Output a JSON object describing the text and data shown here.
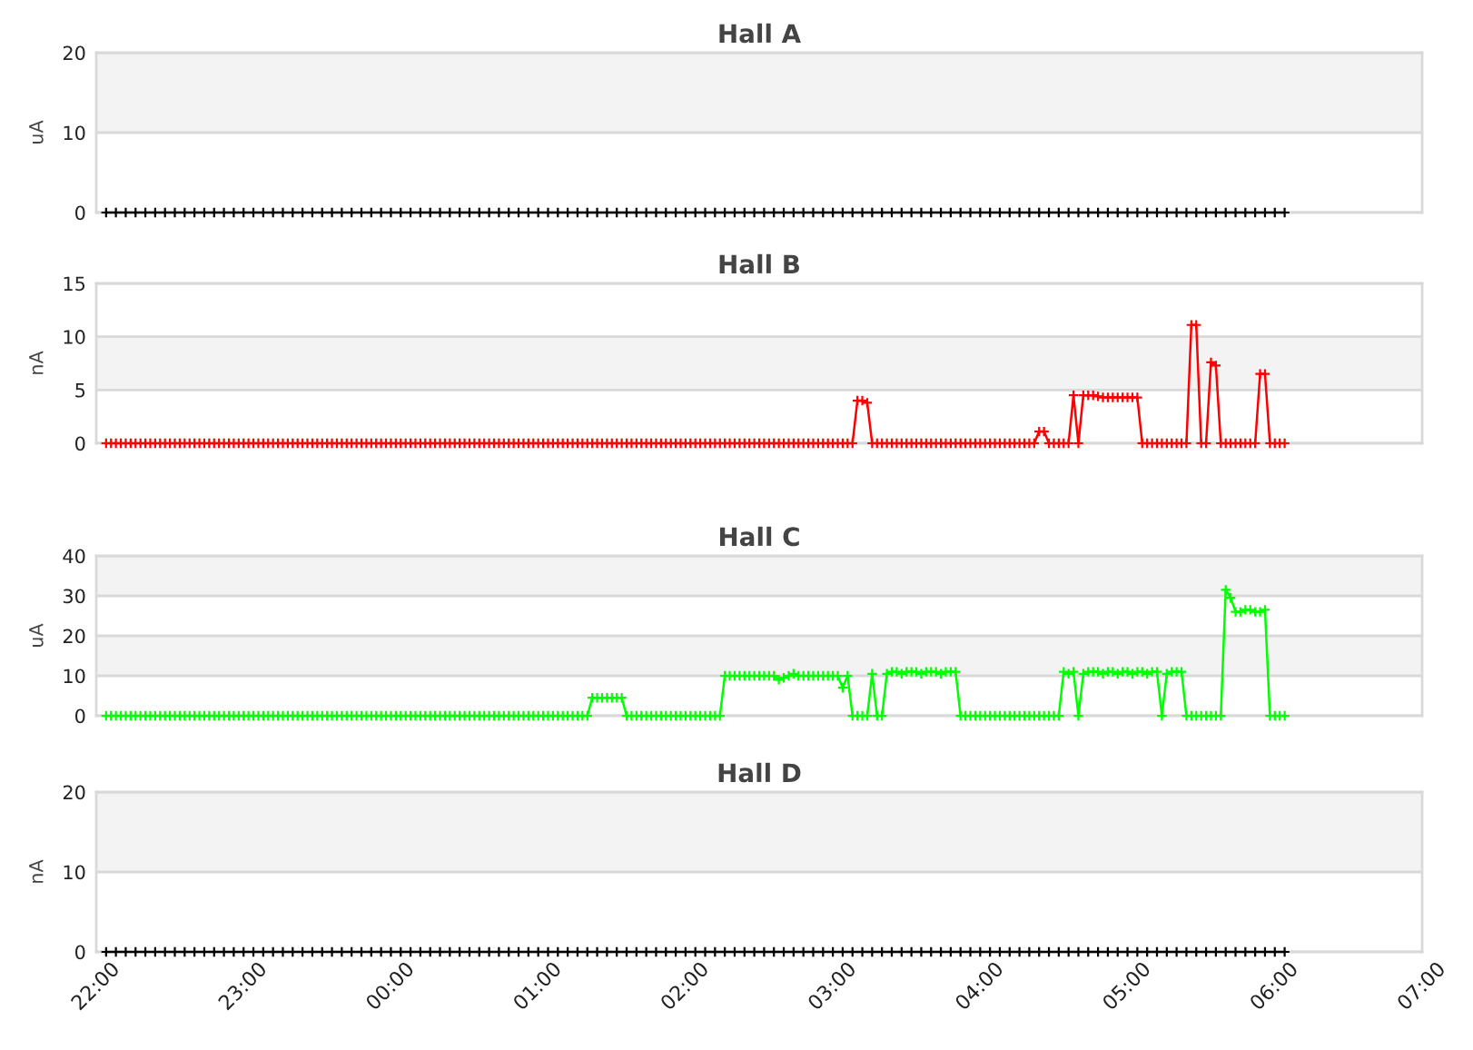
{
  "chart_data": [
    {
      "type": "line",
      "title": "Hall A",
      "ylabel": "uA",
      "xlim": [
        "2000-01-01T22:00",
        "2000-01-02T07:00"
      ],
      "ylim": [
        0,
        20
      ],
      "yticks": [
        0,
        10,
        20
      ],
      "grid": "y",
      "marker": "cross",
      "tick_labels": "y",
      "bands": [
        {
          "axis": "y",
          "from": 10,
          "to": 20,
          "color": "#f3f3f3"
        }
      ],
      "x": [
        "2000-01-01T22:04",
        "2000-01-01T22:08",
        "2000-01-01T22:12",
        "2000-01-01T22:16",
        "2000-01-01T22:20",
        "2000-01-01T22:24",
        "2000-01-01T22:28",
        "2000-01-01T22:32",
        "2000-01-01T22:36",
        "2000-01-01T22:40",
        "2000-01-01T22:44",
        "2000-01-01T22:48",
        "2000-01-01T22:52",
        "2000-01-01T22:56",
        "2000-01-01T23:00",
        "2000-01-01T23:04",
        "2000-01-01T23:08",
        "2000-01-01T23:12",
        "2000-01-01T23:16",
        "2000-01-01T23:20",
        "2000-01-01T23:24",
        "2000-01-01T23:28",
        "2000-01-01T23:32",
        "2000-01-01T23:36",
        "2000-01-01T23:40",
        "2000-01-01T23:44",
        "2000-01-01T23:48",
        "2000-01-01T23:52",
        "2000-01-01T23:56",
        "2000-01-02T00:00",
        "2000-01-02T00:04",
        "2000-01-02T00:08",
        "2000-01-02T00:12",
        "2000-01-02T00:16",
        "2000-01-02T00:20",
        "2000-01-02T00:24",
        "2000-01-02T00:28",
        "2000-01-02T00:32",
        "2000-01-02T00:36",
        "2000-01-02T00:40",
        "2000-01-02T00:44",
        "2000-01-02T00:48",
        "2000-01-02T00:52",
        "2000-01-02T00:56",
        "2000-01-02T01:00",
        "2000-01-02T01:04",
        "2000-01-02T01:08",
        "2000-01-02T01:12",
        "2000-01-02T01:16",
        "2000-01-02T01:20",
        "2000-01-02T01:24",
        "2000-01-02T01:28",
        "2000-01-02T01:32",
        "2000-01-02T01:36",
        "2000-01-02T01:40",
        "2000-01-02T01:44",
        "2000-01-02T01:48",
        "2000-01-02T01:52",
        "2000-01-02T01:56",
        "2000-01-02T02:00",
        "2000-01-02T02:04",
        "2000-01-02T02:08",
        "2000-01-02T02:12",
        "2000-01-02T02:16",
        "2000-01-02T02:20",
        "2000-01-02T02:24",
        "2000-01-02T02:28",
        "2000-01-02T02:32",
        "2000-01-02T02:36",
        "2000-01-02T02:40",
        "2000-01-02T02:44",
        "2000-01-02T02:48",
        "2000-01-02T02:52",
        "2000-01-02T02:56",
        "2000-01-02T03:00",
        "2000-01-02T03:04",
        "2000-01-02T03:08",
        "2000-01-02T03:12",
        "2000-01-02T03:16",
        "2000-01-02T03:20",
        "2000-01-02T03:24",
        "2000-01-02T03:28",
        "2000-01-02T03:32",
        "2000-01-02T03:36",
        "2000-01-02T03:40",
        "2000-01-02T03:44",
        "2000-01-02T03:48",
        "2000-01-02T03:52",
        "2000-01-02T03:56",
        "2000-01-02T04:00",
        "2000-01-02T04:04",
        "2000-01-02T04:08",
        "2000-01-02T04:12",
        "2000-01-02T04:16",
        "2000-01-02T04:20",
        "2000-01-02T04:24",
        "2000-01-02T04:28",
        "2000-01-02T04:32",
        "2000-01-02T04:36",
        "2000-01-02T04:40",
        "2000-01-02T04:44",
        "2000-01-02T04:48",
        "2000-01-02T04:52",
        "2000-01-02T04:56",
        "2000-01-02T05:00",
        "2000-01-02T05:04",
        "2000-01-02T05:08",
        "2000-01-02T05:12",
        "2000-01-02T05:16",
        "2000-01-02T05:20",
        "2000-01-02T05:24",
        "2000-01-02T05:28",
        "2000-01-02T05:32",
        "2000-01-02T05:36",
        "2000-01-02T05:40",
        "2000-01-02T05:44",
        "2000-01-02T05:48",
        "2000-01-02T05:52",
        "2000-01-02T05:56",
        "2000-01-02T06:00",
        "2000-01-02T06:04"
      ],
      "series": [
        {
          "color": "#000000",
          "values": [
            0,
            0,
            0,
            0,
            0,
            0,
            0,
            0,
            0,
            0,
            0,
            0,
            0,
            0,
            0,
            0,
            0,
            0,
            0,
            0,
            0,
            0,
            0,
            0,
            0,
            0,
            0,
            0,
            0,
            0,
            0,
            0,
            0,
            0,
            0,
            0,
            0,
            0,
            0,
            0,
            0,
            0,
            0,
            0,
            0,
            0,
            0,
            0,
            0,
            0,
            0,
            0,
            0,
            0,
            0,
            0,
            0,
            0,
            0,
            0,
            0,
            0,
            0,
            0,
            0,
            0,
            0,
            0,
            0,
            0,
            0,
            0,
            0,
            0,
            0,
            0,
            0,
            0,
            0,
            0,
            0,
            0,
            0,
            0,
            0,
            0,
            0,
            0,
            0,
            0,
            0,
            0,
            0,
            0,
            0,
            0,
            0,
            0,
            0,
            0,
            0,
            0,
            0,
            0,
            0,
            0,
            0,
            0,
            0,
            0,
            0,
            0,
            0,
            0,
            0,
            0,
            0,
            0,
            0,
            0,
            0
          ]
        }
      ]
    },
    {
      "type": "line",
      "title": "Hall B",
      "ylabel": "nA",
      "xlim": [
        "2000-01-01T22:00",
        "2000-01-02T07:00"
      ],
      "ylim": [
        0,
        15
      ],
      "yticks": [
        0,
        5,
        10,
        15
      ],
      "grid": "y",
      "marker": "cross",
      "tick_labels": "y",
      "bands": [
        {
          "axis": "y",
          "from": 5,
          "to": 10,
          "color": "#f3f3f3"
        }
      ],
      "x": [
        "2000-01-01T22:04",
        "2000-01-01T22:06",
        "2000-01-01T22:08",
        "2000-01-01T22:10",
        "2000-01-01T22:12",
        "2000-01-01T22:14",
        "2000-01-01T22:16",
        "2000-01-01T22:18",
        "2000-01-01T22:20",
        "2000-01-01T22:22",
        "2000-01-01T22:24",
        "2000-01-01T22:26",
        "2000-01-01T22:28",
        "2000-01-01T22:30",
        "2000-01-01T22:32",
        "2000-01-01T22:34",
        "2000-01-01T22:36",
        "2000-01-01T22:38",
        "2000-01-01T22:40",
        "2000-01-01T22:42",
        "2000-01-01T22:44",
        "2000-01-01T22:46",
        "2000-01-01T22:48",
        "2000-01-01T22:50",
        "2000-01-01T22:52",
        "2000-01-01T22:54",
        "2000-01-01T22:56",
        "2000-01-01T22:58",
        "2000-01-01T23:00",
        "2000-01-01T23:02",
        "2000-01-01T23:04",
        "2000-01-01T23:06",
        "2000-01-01T23:08",
        "2000-01-01T23:10",
        "2000-01-01T23:12",
        "2000-01-01T23:14",
        "2000-01-01T23:16",
        "2000-01-01T23:18",
        "2000-01-01T23:20",
        "2000-01-01T23:22",
        "2000-01-01T23:24",
        "2000-01-01T23:26",
        "2000-01-01T23:28",
        "2000-01-01T23:30",
        "2000-01-01T23:32",
        "2000-01-01T23:34",
        "2000-01-01T23:36",
        "2000-01-01T23:38",
        "2000-01-01T23:40",
        "2000-01-01T23:42",
        "2000-01-01T23:44",
        "2000-01-01T23:46",
        "2000-01-01T23:48",
        "2000-01-01T23:50",
        "2000-01-01T23:52",
        "2000-01-01T23:54",
        "2000-01-01T23:56",
        "2000-01-01T23:58",
        "2000-01-02T00:00",
        "2000-01-02T00:02",
        "2000-01-02T00:04",
        "2000-01-02T00:06",
        "2000-01-02T00:08",
        "2000-01-02T00:10",
        "2000-01-02T00:12",
        "2000-01-02T00:14",
        "2000-01-02T00:16",
        "2000-01-02T00:18",
        "2000-01-02T00:20",
        "2000-01-02T00:22",
        "2000-01-02T00:24",
        "2000-01-02T00:26",
        "2000-01-02T00:28",
        "2000-01-02T00:30",
        "2000-01-02T00:32",
        "2000-01-02T00:34",
        "2000-01-02T00:36",
        "2000-01-02T00:38",
        "2000-01-02T00:40",
        "2000-01-02T00:42",
        "2000-01-02T00:44",
        "2000-01-02T00:46",
        "2000-01-02T00:48",
        "2000-01-02T00:50",
        "2000-01-02T00:52",
        "2000-01-02T00:54",
        "2000-01-02T00:56",
        "2000-01-02T00:58",
        "2000-01-02T01:00",
        "2000-01-02T01:02",
        "2000-01-02T01:04",
        "2000-01-02T01:06",
        "2000-01-02T01:08",
        "2000-01-02T01:10",
        "2000-01-02T01:12",
        "2000-01-02T01:14",
        "2000-01-02T01:16",
        "2000-01-02T01:18",
        "2000-01-02T01:20",
        "2000-01-02T01:22",
        "2000-01-02T01:24",
        "2000-01-02T01:26",
        "2000-01-02T01:28",
        "2000-01-02T01:30",
        "2000-01-02T01:32",
        "2000-01-02T01:34",
        "2000-01-02T01:36",
        "2000-01-02T01:38",
        "2000-01-02T01:40",
        "2000-01-02T01:42",
        "2000-01-02T01:44",
        "2000-01-02T01:46",
        "2000-01-02T01:48",
        "2000-01-02T01:50",
        "2000-01-02T01:52",
        "2000-01-02T01:54",
        "2000-01-02T01:56",
        "2000-01-02T01:58",
        "2000-01-02T02:00",
        "2000-01-02T02:02",
        "2000-01-02T02:04",
        "2000-01-02T02:06",
        "2000-01-02T02:08",
        "2000-01-02T02:10",
        "2000-01-02T02:12",
        "2000-01-02T02:14",
        "2000-01-02T02:16",
        "2000-01-02T02:18",
        "2000-01-02T02:20",
        "2000-01-02T02:22",
        "2000-01-02T02:24",
        "2000-01-02T02:26",
        "2000-01-02T02:28",
        "2000-01-02T02:30",
        "2000-01-02T02:32",
        "2000-01-02T02:34",
        "2000-01-02T02:36",
        "2000-01-02T02:38",
        "2000-01-02T02:40",
        "2000-01-02T02:42",
        "2000-01-02T02:44",
        "2000-01-02T02:46",
        "2000-01-02T02:48",
        "2000-01-02T02:50",
        "2000-01-02T02:52",
        "2000-01-02T02:54",
        "2000-01-02T02:56",
        "2000-01-02T02:58",
        "2000-01-02T03:00",
        "2000-01-02T03:02",
        "2000-01-02T03:04",
        "2000-01-02T03:06",
        "2000-01-02T03:08",
        "2000-01-02T03:10",
        "2000-01-02T03:12",
        "2000-01-02T03:14",
        "2000-01-02T03:16",
        "2000-01-02T03:18",
        "2000-01-02T03:20",
        "2000-01-02T03:22",
        "2000-01-02T03:24",
        "2000-01-02T03:26",
        "2000-01-02T03:28",
        "2000-01-02T03:30",
        "2000-01-02T03:32",
        "2000-01-02T03:34",
        "2000-01-02T03:36",
        "2000-01-02T03:38",
        "2000-01-02T03:40",
        "2000-01-02T03:42",
        "2000-01-02T03:44",
        "2000-01-02T03:46",
        "2000-01-02T03:48",
        "2000-01-02T03:50",
        "2000-01-02T03:52",
        "2000-01-02T03:54",
        "2000-01-02T03:56",
        "2000-01-02T03:58",
        "2000-01-02T04:00",
        "2000-01-02T04:02",
        "2000-01-02T04:04",
        "2000-01-02T04:06",
        "2000-01-02T04:08",
        "2000-01-02T04:10",
        "2000-01-02T04:12",
        "2000-01-02T04:14",
        "2000-01-02T04:16",
        "2000-01-02T04:18",
        "2000-01-02T04:20",
        "2000-01-02T04:22",
        "2000-01-02T04:24",
        "2000-01-02T04:26",
        "2000-01-02T04:28",
        "2000-01-02T04:30",
        "2000-01-02T04:32",
        "2000-01-02T04:34",
        "2000-01-02T04:36",
        "2000-01-02T04:38",
        "2000-01-02T04:40",
        "2000-01-02T04:42",
        "2000-01-02T04:44",
        "2000-01-02T04:46",
        "2000-01-02T04:48",
        "2000-01-02T04:50",
        "2000-01-02T04:52",
        "2000-01-02T04:54",
        "2000-01-02T04:56",
        "2000-01-02T04:58",
        "2000-01-02T05:00",
        "2000-01-02T05:02",
        "2000-01-02T05:04",
        "2000-01-02T05:06",
        "2000-01-02T05:08",
        "2000-01-02T05:10",
        "2000-01-02T05:12",
        "2000-01-02T05:14",
        "2000-01-02T05:16",
        "2000-01-02T05:18",
        "2000-01-02T05:20",
        "2000-01-02T05:22",
        "2000-01-02T05:24",
        "2000-01-02T05:26",
        "2000-01-02T05:28",
        "2000-01-02T05:30",
        "2000-01-02T05:32",
        "2000-01-02T05:34",
        "2000-01-02T05:36",
        "2000-01-02T05:38",
        "2000-01-02T05:40",
        "2000-01-02T05:42",
        "2000-01-02T05:44",
        "2000-01-02T05:46",
        "2000-01-02T05:48",
        "2000-01-02T05:50",
        "2000-01-02T05:52",
        "2000-01-02T05:54",
        "2000-01-02T05:56",
        "2000-01-02T05:58",
        "2000-01-02T06:00",
        "2000-01-02T06:02",
        "2000-01-02T06:04"
      ],
      "series": [
        {
          "color": "#ff0000",
          "values": [
            0,
            0,
            0,
            0,
            0,
            0,
            0,
            0,
            0,
            0,
            0,
            0,
            0,
            0,
            0,
            0,
            0,
            0,
            0,
            0,
            0,
            0,
            0,
            0,
            0,
            0,
            0,
            0,
            0,
            0,
            0,
            0,
            0,
            0,
            0,
            0,
            0,
            0,
            0,
            0,
            0,
            0,
            0,
            0,
            0,
            0,
            0,
            0,
            0,
            0,
            0,
            0,
            0,
            0,
            0,
            0,
            0,
            0,
            0,
            0,
            0,
            0,
            0,
            0,
            0,
            0,
            0,
            0,
            0,
            0,
            0,
            0,
            0,
            0,
            0,
            0,
            0,
            0,
            0,
            0,
            0,
            0,
            0,
            0,
            0,
            0,
            0,
            0,
            0,
            0,
            0,
            0,
            0,
            0,
            0,
            0,
            0,
            0,
            0,
            0,
            0,
            0,
            0,
            0,
            0,
            0,
            0,
            0,
            0,
            0,
            0,
            0,
            0,
            0,
            0,
            0,
            0,
            0,
            0,
            0,
            0,
            0,
            0,
            0,
            0,
            0,
            0,
            0,
            0,
            0,
            0,
            0,
            0,
            0,
            0,
            0,
            0,
            0,
            0,
            0,
            0,
            0,
            0,
            0,
            0,
            0,
            0,
            0,
            0,
            0,
            0,
            0,
            0,
            4,
            4,
            3.8,
            0,
            0,
            0,
            0,
            0,
            0,
            0,
            0,
            0,
            0,
            0,
            0,
            0,
            0,
            0,
            0,
            0,
            0,
            0,
            0,
            0,
            0,
            0,
            0,
            0,
            0,
            0,
            0,
            0,
            0,
            0,
            0,
            0,
            0,
            1.1,
            1.1,
            0,
            0,
            0,
            0,
            0,
            4.5,
            0,
            4.5,
            4.5,
            4.5,
            4.4,
            4.3,
            4.3,
            4.3,
            4.3,
            4.3,
            4.3,
            4.3,
            4.3,
            0,
            0,
            0,
            0,
            0,
            0,
            0,
            0,
            0,
            0,
            11.1,
            11.1,
            0,
            0,
            7.6,
            7.3,
            0,
            0,
            0,
            0,
            0,
            0,
            0,
            0,
            6.5,
            6.5,
            0,
            0,
            0,
            0
          ]
        }
      ]
    },
    {
      "type": "line",
      "title": "Hall C",
      "ylabel": "uA",
      "xlim": [
        "2000-01-01T22:00",
        "2000-01-02T07:00"
      ],
      "ylim": [
        0,
        40
      ],
      "yticks": [
        0,
        10,
        20,
        30,
        40
      ],
      "grid": "y",
      "marker": "cross",
      "tick_labels": "y",
      "bands": [
        {
          "axis": "y",
          "from": 10,
          "to": 20,
          "color": "#f3f3f3"
        },
        {
          "axis": "y",
          "from": 30,
          "to": 40,
          "color": "#f3f3f3"
        }
      ],
      "x": [
        "2000-01-01T22:04",
        "2000-01-01T22:06",
        "2000-01-01T22:08",
        "2000-01-01T22:10",
        "2000-01-01T22:12",
        "2000-01-01T22:14",
        "2000-01-01T22:16",
        "2000-01-01T22:18",
        "2000-01-01T22:20",
        "2000-01-01T22:22",
        "2000-01-01T22:24",
        "2000-01-01T22:26",
        "2000-01-01T22:28",
        "2000-01-01T22:30",
        "2000-01-01T22:32",
        "2000-01-01T22:34",
        "2000-01-01T22:36",
        "2000-01-01T22:38",
        "2000-01-01T22:40",
        "2000-01-01T22:42",
        "2000-01-01T22:44",
        "2000-01-01T22:46",
        "2000-01-01T22:48",
        "2000-01-01T22:50",
        "2000-01-01T22:52",
        "2000-01-01T22:54",
        "2000-01-01T22:56",
        "2000-01-01T22:58",
        "2000-01-01T23:00",
        "2000-01-01T23:02",
        "2000-01-01T23:04",
        "2000-01-01T23:06",
        "2000-01-01T23:08",
        "2000-01-01T23:10",
        "2000-01-01T23:12",
        "2000-01-01T23:14",
        "2000-01-01T23:16",
        "2000-01-01T23:18",
        "2000-01-01T23:20",
        "2000-01-01T23:22",
        "2000-01-01T23:24",
        "2000-01-01T23:26",
        "2000-01-01T23:28",
        "2000-01-01T23:30",
        "2000-01-01T23:32",
        "2000-01-01T23:34",
        "2000-01-01T23:36",
        "2000-01-01T23:38",
        "2000-01-01T23:40",
        "2000-01-01T23:42",
        "2000-01-01T23:44",
        "2000-01-01T23:46",
        "2000-01-01T23:48",
        "2000-01-01T23:50",
        "2000-01-01T23:52",
        "2000-01-01T23:54",
        "2000-01-01T23:56",
        "2000-01-01T23:58",
        "2000-01-02T00:00",
        "2000-01-02T00:02",
        "2000-01-02T00:04",
        "2000-01-02T00:06",
        "2000-01-02T00:08",
        "2000-01-02T00:10",
        "2000-01-02T00:12",
        "2000-01-02T00:14",
        "2000-01-02T00:16",
        "2000-01-02T00:18",
        "2000-01-02T00:20",
        "2000-01-02T00:22",
        "2000-01-02T00:24",
        "2000-01-02T00:26",
        "2000-01-02T00:28",
        "2000-01-02T00:30",
        "2000-01-02T00:32",
        "2000-01-02T00:34",
        "2000-01-02T00:36",
        "2000-01-02T00:38",
        "2000-01-02T00:40",
        "2000-01-02T00:42",
        "2000-01-02T00:44",
        "2000-01-02T00:46",
        "2000-01-02T00:48",
        "2000-01-02T00:50",
        "2000-01-02T00:52",
        "2000-01-02T00:54",
        "2000-01-02T00:56",
        "2000-01-02T00:58",
        "2000-01-02T01:00",
        "2000-01-02T01:02",
        "2000-01-02T01:04",
        "2000-01-02T01:06",
        "2000-01-02T01:08",
        "2000-01-02T01:10",
        "2000-01-02T01:12",
        "2000-01-02T01:14",
        "2000-01-02T01:16",
        "2000-01-02T01:18",
        "2000-01-02T01:20",
        "2000-01-02T01:22",
        "2000-01-02T01:24",
        "2000-01-02T01:26",
        "2000-01-02T01:28",
        "2000-01-02T01:30",
        "2000-01-02T01:32",
        "2000-01-02T01:34",
        "2000-01-02T01:36",
        "2000-01-02T01:38",
        "2000-01-02T01:40",
        "2000-01-02T01:42",
        "2000-01-02T01:44",
        "2000-01-02T01:46",
        "2000-01-02T01:48",
        "2000-01-02T01:50",
        "2000-01-02T01:52",
        "2000-01-02T01:54",
        "2000-01-02T01:56",
        "2000-01-02T01:58",
        "2000-01-02T02:00",
        "2000-01-02T02:02",
        "2000-01-02T02:04",
        "2000-01-02T02:06",
        "2000-01-02T02:08",
        "2000-01-02T02:10",
        "2000-01-02T02:12",
        "2000-01-02T02:14",
        "2000-01-02T02:16",
        "2000-01-02T02:18",
        "2000-01-02T02:20",
        "2000-01-02T02:22",
        "2000-01-02T02:24",
        "2000-01-02T02:26",
        "2000-01-02T02:28",
        "2000-01-02T02:30",
        "2000-01-02T02:32",
        "2000-01-02T02:34",
        "2000-01-02T02:36",
        "2000-01-02T02:38",
        "2000-01-02T02:40",
        "2000-01-02T02:42",
        "2000-01-02T02:44",
        "2000-01-02T02:46",
        "2000-01-02T02:48",
        "2000-01-02T02:50",
        "2000-01-02T02:52",
        "2000-01-02T02:54",
        "2000-01-02T02:56",
        "2000-01-02T02:58",
        "2000-01-02T03:00",
        "2000-01-02T03:02",
        "2000-01-02T03:04",
        "2000-01-02T03:06",
        "2000-01-02T03:08",
        "2000-01-02T03:10",
        "2000-01-02T03:12",
        "2000-01-02T03:14",
        "2000-01-02T03:16",
        "2000-01-02T03:18",
        "2000-01-02T03:20",
        "2000-01-02T03:22",
        "2000-01-02T03:24",
        "2000-01-02T03:26",
        "2000-01-02T03:28",
        "2000-01-02T03:30",
        "2000-01-02T03:32",
        "2000-01-02T03:34",
        "2000-01-02T03:36",
        "2000-01-02T03:38",
        "2000-01-02T03:40",
        "2000-01-02T03:42",
        "2000-01-02T03:44",
        "2000-01-02T03:46",
        "2000-01-02T03:48",
        "2000-01-02T03:50",
        "2000-01-02T03:52",
        "2000-01-02T03:54",
        "2000-01-02T03:56",
        "2000-01-02T03:58",
        "2000-01-02T04:00",
        "2000-01-02T04:02",
        "2000-01-02T04:04",
        "2000-01-02T04:06",
        "2000-01-02T04:08",
        "2000-01-02T04:10",
        "2000-01-02T04:12",
        "2000-01-02T04:14",
        "2000-01-02T04:16",
        "2000-01-02T04:18",
        "2000-01-02T04:20",
        "2000-01-02T04:22",
        "2000-01-02T04:24",
        "2000-01-02T04:26",
        "2000-01-02T04:28",
        "2000-01-02T04:30",
        "2000-01-02T04:32",
        "2000-01-02T04:34",
        "2000-01-02T04:36",
        "2000-01-02T04:38",
        "2000-01-02T04:40",
        "2000-01-02T04:42",
        "2000-01-02T04:44",
        "2000-01-02T04:46",
        "2000-01-02T04:48",
        "2000-01-02T04:50",
        "2000-01-02T04:52",
        "2000-01-02T04:54",
        "2000-01-02T04:56",
        "2000-01-02T04:58",
        "2000-01-02T05:00",
        "2000-01-02T05:02",
        "2000-01-02T05:04",
        "2000-01-02T05:06",
        "2000-01-02T05:08",
        "2000-01-02T05:10",
        "2000-01-02T05:12",
        "2000-01-02T05:14",
        "2000-01-02T05:16",
        "2000-01-02T05:18",
        "2000-01-02T05:20",
        "2000-01-02T05:22",
        "2000-01-02T05:24",
        "2000-01-02T05:26",
        "2000-01-02T05:28",
        "2000-01-02T05:30",
        "2000-01-02T05:32",
        "2000-01-02T05:34",
        "2000-01-02T05:36",
        "2000-01-02T05:38",
        "2000-01-02T05:40",
        "2000-01-02T05:42",
        "2000-01-02T05:44",
        "2000-01-02T05:46",
        "2000-01-02T05:48",
        "2000-01-02T05:50",
        "2000-01-02T05:52",
        "2000-01-02T05:54",
        "2000-01-02T05:56",
        "2000-01-02T05:58",
        "2000-01-02T06:00",
        "2000-01-02T06:02",
        "2000-01-02T06:04"
      ],
      "series": [
        {
          "color": "#00ff00",
          "values": [
            0,
            0,
            0,
            0,
            0,
            0,
            0,
            0,
            0,
            0,
            0,
            0,
            0,
            0,
            0,
            0,
            0,
            0,
            0,
            0,
            0,
            0,
            0,
            0,
            0,
            0,
            0,
            0,
            0,
            0,
            0,
            0,
            0,
            0,
            0,
            0,
            0,
            0,
            0,
            0,
            0,
            0,
            0,
            0,
            0,
            0,
            0,
            0,
            0,
            0,
            0,
            0,
            0,
            0,
            0,
            0,
            0,
            0,
            0,
            0,
            0,
            0,
            0,
            0,
            0,
            0,
            0,
            0,
            0,
            0,
            0,
            0,
            0,
            0,
            0,
            0,
            0,
            0,
            0,
            0,
            0,
            0,
            0,
            0,
            0,
            0,
            0,
            0,
            0,
            0,
            0,
            0,
            0,
            0,
            0,
            0,
            0,
            0,
            0,
            4.5,
            4.5,
            4.5,
            4.5,
            4.5,
            4.5,
            4.5,
            0,
            0,
            0,
            0,
            0,
            0,
            0,
            0,
            0,
            0,
            0,
            0,
            0,
            0,
            0,
            0,
            0,
            0,
            0,
            0,
            10,
            10,
            10,
            10,
            10,
            10,
            10,
            10,
            10,
            10,
            10,
            9,
            9.5,
            10,
            10.5,
            10,
            10,
            10,
            10,
            10,
            10,
            10,
            10,
            10,
            7,
            10,
            0,
            0,
            0,
            0,
            10.5,
            0,
            0,
            10.5,
            11,
            11,
            10.5,
            11,
            11,
            11,
            10.5,
            11,
            11,
            11,
            10.5,
            11,
            11,
            11,
            0,
            0,
            0,
            0,
            0,
            0,
            0,
            0,
            0,
            0,
            0,
            0,
            0,
            0,
            0,
            0,
            0,
            0,
            0,
            0,
            0,
            11,
            10.5,
            11,
            0,
            10.5,
            11,
            11,
            11,
            10.5,
            11,
            11,
            10.5,
            11,
            11,
            10.5,
            11,
            11,
            10.5,
            11,
            11,
            0,
            10.5,
            11,
            11,
            11,
            0,
            0,
            0,
            0,
            0,
            0,
            0,
            0,
            31.5,
            29.5,
            26,
            26,
            26.5,
            26.5,
            26,
            26,
            26.5,
            0,
            0,
            0,
            0
          ]
        }
      ]
    },
    {
      "type": "line",
      "title": "Hall D",
      "ylabel": "nA",
      "xlim": [
        "2000-01-01T22:00",
        "2000-01-02T07:00"
      ],
      "ylim": [
        0,
        20
      ],
      "yticks": [
        0,
        10,
        20
      ],
      "grid": "y",
      "marker": "cross",
      "xticks": [
        {
          "value": "2000-01-01T22:00",
          "label": "22:00"
        },
        {
          "value": "2000-01-01T23:00",
          "label": "23:00"
        },
        {
          "value": "2000-01-02T00:00",
          "label": "00:00"
        },
        {
          "value": "2000-01-02T01:00",
          "label": "01:00"
        },
        {
          "value": "2000-01-02T02:00",
          "label": "02:00"
        },
        {
          "value": "2000-01-02T03:00",
          "label": "03:00"
        },
        {
          "value": "2000-01-02T04:00",
          "label": "04:00"
        },
        {
          "value": "2000-01-02T05:00",
          "label": "05:00"
        },
        {
          "value": "2000-01-02T06:00",
          "label": "06:00"
        },
        {
          "value": "2000-01-02T07:00",
          "label": "07:00"
        }
      ],
      "bands": [
        {
          "axis": "y",
          "from": 10,
          "to": 20,
          "color": "#f3f3f3"
        }
      ],
      "x": [
        "2000-01-01T22:04",
        "2000-01-01T22:08",
        "2000-01-01T22:12",
        "2000-01-01T22:16",
        "2000-01-01T22:20",
        "2000-01-01T22:24",
        "2000-01-01T22:28",
        "2000-01-01T22:32",
        "2000-01-01T22:36",
        "2000-01-01T22:40",
        "2000-01-01T22:44",
        "2000-01-01T22:48",
        "2000-01-01T22:52",
        "2000-01-01T22:56",
        "2000-01-01T23:00",
        "2000-01-01T23:04",
        "2000-01-01T23:08",
        "2000-01-01T23:12",
        "2000-01-01T23:16",
        "2000-01-01T23:20",
        "2000-01-01T23:24",
        "2000-01-01T23:28",
        "2000-01-01T23:32",
        "2000-01-01T23:36",
        "2000-01-01T23:40",
        "2000-01-01T23:44",
        "2000-01-01T23:48",
        "2000-01-01T23:52",
        "2000-01-01T23:56",
        "2000-01-02T00:00",
        "2000-01-02T00:04",
        "2000-01-02T00:08",
        "2000-01-02T00:12",
        "2000-01-02T00:16",
        "2000-01-02T00:20",
        "2000-01-02T00:24",
        "2000-01-02T00:28",
        "2000-01-02T00:32",
        "2000-01-02T00:36",
        "2000-01-02T00:40",
        "2000-01-02T00:44",
        "2000-01-02T00:48",
        "2000-01-02T00:52",
        "2000-01-02T00:56",
        "2000-01-02T01:00",
        "2000-01-02T01:04",
        "2000-01-02T01:08",
        "2000-01-02T01:12",
        "2000-01-02T01:16",
        "2000-01-02T01:20",
        "2000-01-02T01:24",
        "2000-01-02T01:28",
        "2000-01-02T01:32",
        "2000-01-02T01:36",
        "2000-01-02T01:40",
        "2000-01-02T01:44",
        "2000-01-02T01:48",
        "2000-01-02T01:52",
        "2000-01-02T01:56",
        "2000-01-02T02:00",
        "2000-01-02T02:04",
        "2000-01-02T02:08",
        "2000-01-02T02:12",
        "2000-01-02T02:16",
        "2000-01-02T02:20",
        "2000-01-02T02:24",
        "2000-01-02T02:28",
        "2000-01-02T02:32",
        "2000-01-02T02:36",
        "2000-01-02T02:40",
        "2000-01-02T02:44",
        "2000-01-02T02:48",
        "2000-01-02T02:52",
        "2000-01-02T02:56",
        "2000-01-02T03:00",
        "2000-01-02T03:04",
        "2000-01-02T03:08",
        "2000-01-02T03:12",
        "2000-01-02T03:16",
        "2000-01-02T03:20",
        "2000-01-02T03:24",
        "2000-01-02T03:28",
        "2000-01-02T03:32",
        "2000-01-02T03:36",
        "2000-01-02T03:40",
        "2000-01-02T03:44",
        "2000-01-02T03:48",
        "2000-01-02T03:52",
        "2000-01-02T03:56",
        "2000-01-02T04:00",
        "2000-01-02T04:04",
        "2000-01-02T04:08",
        "2000-01-02T04:12",
        "2000-01-02T04:16",
        "2000-01-02T04:20",
        "2000-01-02T04:24",
        "2000-01-02T04:28",
        "2000-01-02T04:32",
        "2000-01-02T04:36",
        "2000-01-02T04:40",
        "2000-01-02T04:44",
        "2000-01-02T04:48",
        "2000-01-02T04:52",
        "2000-01-02T04:56",
        "2000-01-02T05:00",
        "2000-01-02T05:04",
        "2000-01-02T05:08",
        "2000-01-02T05:12",
        "2000-01-02T05:16",
        "2000-01-02T05:20",
        "2000-01-02T05:24",
        "2000-01-02T05:28",
        "2000-01-02T05:32",
        "2000-01-02T05:36",
        "2000-01-02T05:40",
        "2000-01-02T05:44",
        "2000-01-02T05:48",
        "2000-01-02T05:52",
        "2000-01-02T05:56",
        "2000-01-02T06:00",
        "2000-01-02T06:04"
      ],
      "series": [
        {
          "color": "#000000",
          "values": [
            0,
            0,
            0,
            0,
            0,
            0,
            0,
            0,
            0,
            0,
            0,
            0,
            0,
            0,
            0,
            0,
            0,
            0,
            0,
            0,
            0,
            0,
            0,
            0,
            0,
            0,
            0,
            0,
            0,
            0,
            0,
            0,
            0,
            0,
            0,
            0,
            0,
            0,
            0,
            0,
            0,
            0,
            0,
            0,
            0,
            0,
            0,
            0,
            0,
            0,
            0,
            0,
            0,
            0,
            0,
            0,
            0,
            0,
            0,
            0,
            0,
            0,
            0,
            0,
            0,
            0,
            0,
            0,
            0,
            0,
            0,
            0,
            0,
            0,
            0,
            0,
            0,
            0,
            0,
            0,
            0,
            0,
            0,
            0,
            0,
            0,
            0,
            0,
            0,
            0,
            0,
            0,
            0,
            0,
            0,
            0,
            0,
            0,
            0,
            0,
            0,
            0,
            0,
            0,
            0,
            0,
            0,
            0,
            0,
            0,
            0,
            0,
            0,
            0,
            0,
            0,
            0,
            0,
            0,
            0,
            0
          ]
        }
      ]
    }
  ]
}
